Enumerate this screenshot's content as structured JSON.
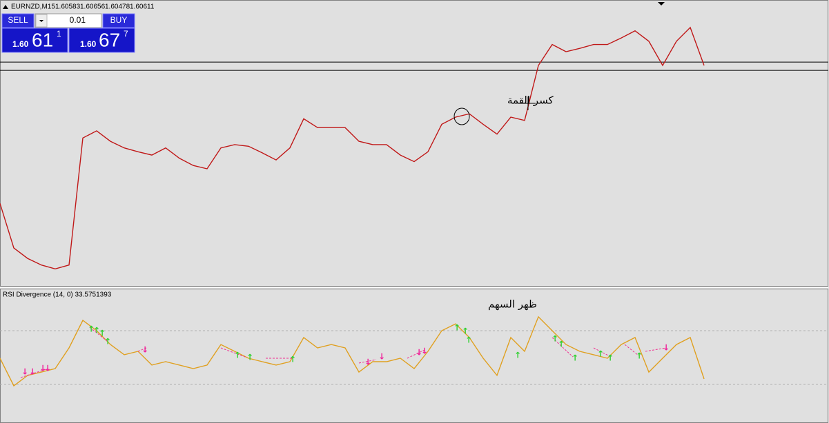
{
  "header": {
    "symbol": "EURNZD,M15",
    "open": "1.60583",
    "high": "1.60656",
    "low": "1.60478",
    "close": "1.60611"
  },
  "trade_panel": {
    "sell_button": "SELL",
    "buy_button": "BUY",
    "lot": "0.01",
    "sell_price": {
      "prefix": "1.60",
      "big": "61",
      "small": "1"
    },
    "buy_price": {
      "prefix": "1.60",
      "big": "67",
      "small": "7"
    }
  },
  "chart_data": [
    {
      "type": "line",
      "color": "#c01818",
      "values": [
        1.581,
        1.5729,
        1.571,
        1.5698,
        1.5691,
        1.5698,
        1.5929,
        1.5942,
        1.5923,
        1.5911,
        1.5904,
        1.5898,
        1.5911,
        1.5892,
        1.5879,
        1.5873,
        1.5911,
        1.5917,
        1.5914,
        1.5902,
        1.5889,
        1.5911,
        1.5964,
        1.5948,
        1.5948,
        1.5948,
        1.5923,
        1.5917,
        1.5917,
        1.5898,
        1.5886,
        1.5904,
        1.5954,
        1.5967,
        1.5973,
        1.5954,
        1.5936,
        1.5967,
        1.5961,
        1.6061,
        1.6099,
        1.6086,
        1.6092,
        1.6099,
        1.6099,
        1.6111,
        1.6124,
        1.6105,
        1.6061,
        1.6105,
        1.613,
        1.6061
      ],
      "ylim": [
        1.566,
        1.618
      ],
      "hlines": [
        1.6067,
        1.6052
      ],
      "annotation": "كسر القمة"
    },
    {
      "type": "line",
      "title": "RSI Divergence (14, 0) 33.5751393",
      "color": "#e0a020",
      "values": [
        49.5,
        29.0,
        36.7,
        39.2,
        41.8,
        57.2,
        77.7,
        70,
        59.7,
        52.1,
        54.6,
        44.4,
        46.9,
        44.4,
        41.8,
        44.4,
        59.7,
        54.6,
        49.5,
        46.9,
        44.4,
        46.9,
        64.9,
        57.2,
        59.7,
        57.2,
        39.2,
        46.9,
        46.9,
        49.5,
        41.8,
        54.6,
        70,
        75.1,
        64.9,
        49.5,
        36.7,
        64.9,
        54.6,
        80.3,
        70,
        59.7,
        54.6,
        52.1,
        49.5,
        59.7,
        64.9,
        39.2,
        49.5,
        59.7,
        64.9,
        34.1
      ],
      "ylim": [
        0,
        100
      ],
      "levels": [
        30,
        70
      ],
      "annotation": "ظهر السهم"
    }
  ]
}
